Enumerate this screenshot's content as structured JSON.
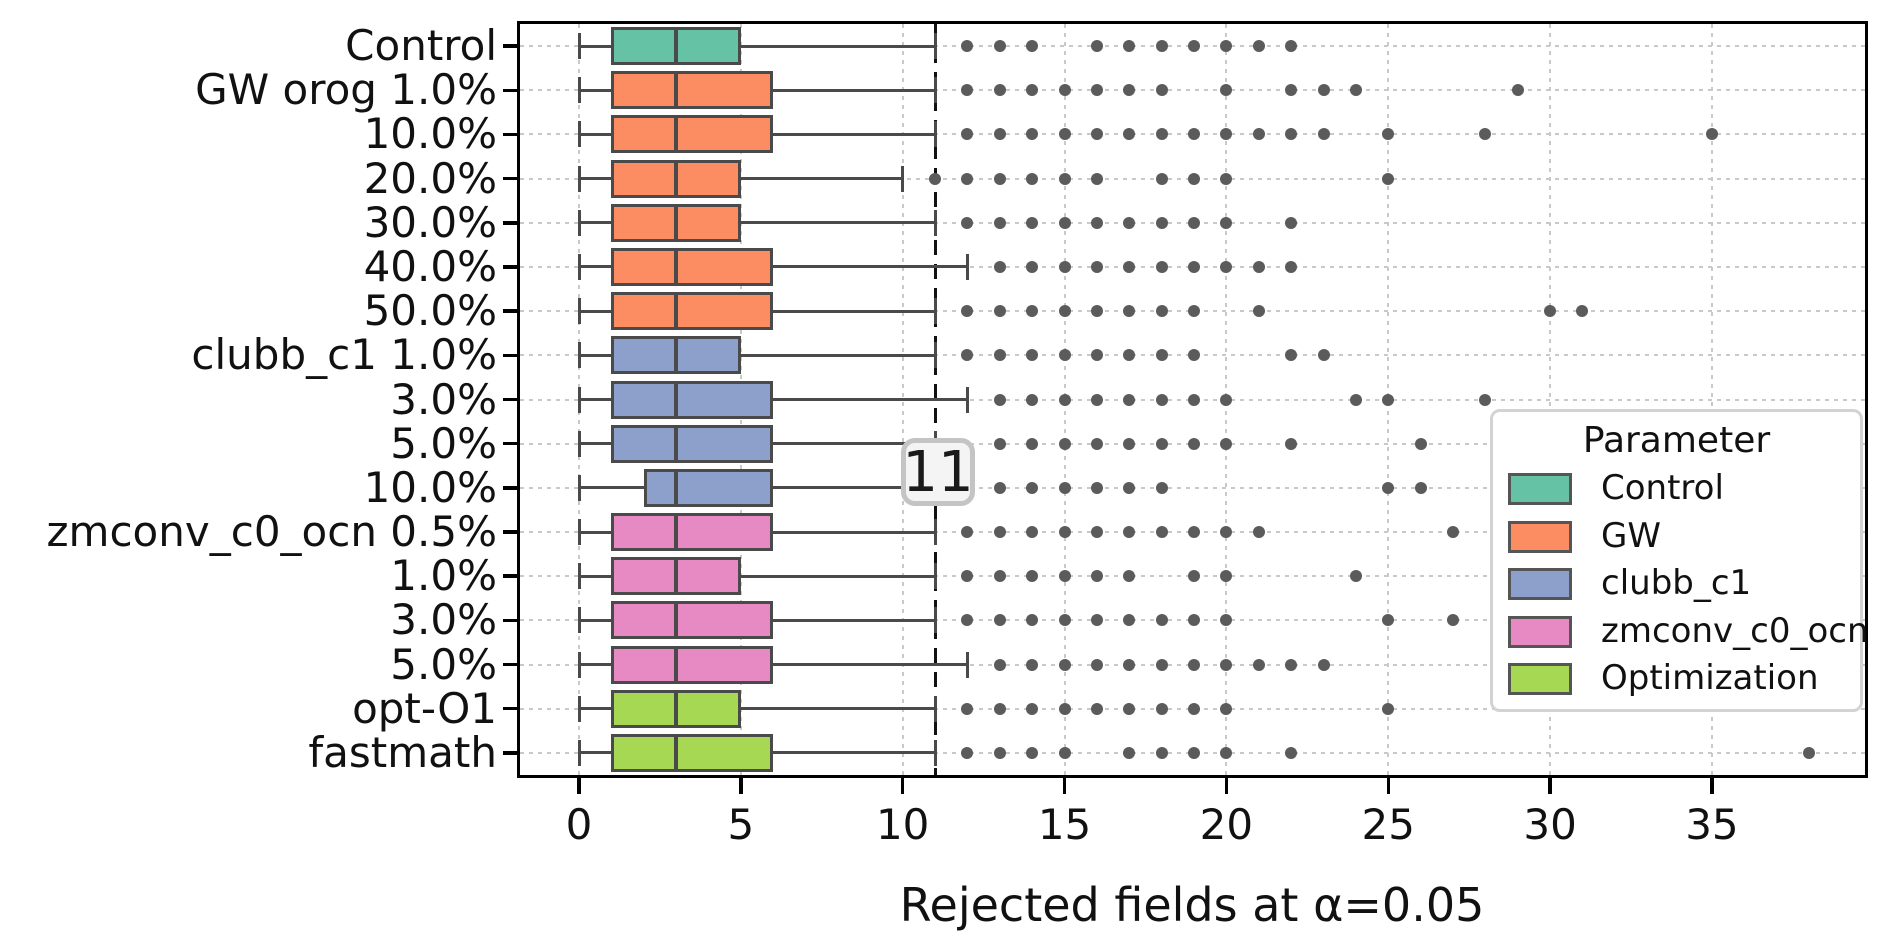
{
  "chart_data": {
    "type": "boxplot",
    "orientation": "horizontal",
    "xlabel": "Rejected fields at α=0.05",
    "x_ticks": [
      0,
      5,
      10,
      15,
      20,
      25,
      30,
      35
    ],
    "xlim": [
      -2,
      40
    ],
    "grid": "dotted on both axes",
    "reference_line": {
      "value": 11,
      "label": "11",
      "style": "black dashed vertical"
    },
    "legend": {
      "title": "Parameter",
      "position": "right",
      "entries": [
        {
          "label": "Control",
          "color": "#66c2a5"
        },
        {
          "label": "GW",
          "color": "#fc8d62"
        },
        {
          "label": "clubb_c1",
          "color": "#8da0cb"
        },
        {
          "label": "zmconv_c0_ocn",
          "color": "#e78ac3"
        },
        {
          "label": "Optimization",
          "color": "#a6d854"
        }
      ]
    },
    "style_colors": {
      "box_edge": "#4a4a4a",
      "flier": "#5b5b5b",
      "grid": "#c9c9c9",
      "reference": "#111111"
    },
    "rows": [
      {
        "label": "Control",
        "group": "Control",
        "whisker_low": 0,
        "q1": 1,
        "median": 3,
        "q3": 5,
        "whisker_high": 11,
        "fliers": [
          12,
          13,
          14,
          16,
          17,
          18,
          19,
          20,
          21,
          22
        ]
      },
      {
        "label": "GW orog 1.0%",
        "group": "GW",
        "whisker_low": 0,
        "q1": 1,
        "median": 3,
        "q3": 6,
        "whisker_high": 11,
        "fliers": [
          12,
          13,
          14,
          15,
          16,
          17,
          18,
          20,
          22,
          23,
          24,
          29
        ]
      },
      {
        "label": "10.0%",
        "group": "GW",
        "whisker_low": 0,
        "q1": 1,
        "median": 3,
        "q3": 6,
        "whisker_high": 11,
        "fliers": [
          12,
          13,
          14,
          15,
          16,
          17,
          18,
          19,
          20,
          21,
          22,
          23,
          25,
          28,
          35
        ]
      },
      {
        "label": "20.0%",
        "group": "GW",
        "whisker_low": 0,
        "q1": 1,
        "median": 3,
        "q3": 5,
        "whisker_high": 10,
        "fliers": [
          11,
          12,
          13,
          14,
          15,
          16,
          18,
          19,
          20,
          25
        ]
      },
      {
        "label": "30.0%",
        "group": "GW",
        "whisker_low": 0,
        "q1": 1,
        "median": 3,
        "q3": 5,
        "whisker_high": 11,
        "fliers": [
          12,
          13,
          14,
          15,
          16,
          17,
          18,
          19,
          20,
          22
        ]
      },
      {
        "label": "40.0%",
        "group": "GW",
        "whisker_low": 0,
        "q1": 1,
        "median": 3,
        "q3": 6,
        "whisker_high": 12,
        "fliers": [
          13,
          14,
          15,
          16,
          17,
          18,
          19,
          20,
          21,
          22
        ]
      },
      {
        "label": "50.0%",
        "group": "GW",
        "whisker_low": 0,
        "q1": 1,
        "median": 3,
        "q3": 6,
        "whisker_high": 11,
        "fliers": [
          12,
          13,
          14,
          15,
          16,
          17,
          18,
          19,
          21,
          30,
          31
        ]
      },
      {
        "label": "clubb_c1 1.0%",
        "group": "clubb_c1",
        "whisker_low": 0,
        "q1": 1,
        "median": 3,
        "q3": 5,
        "whisker_high": 11,
        "fliers": [
          12,
          13,
          14,
          15,
          16,
          17,
          18,
          19,
          22,
          23
        ]
      },
      {
        "label": "3.0%",
        "group": "clubb_c1",
        "whisker_low": 0,
        "q1": 1,
        "median": 3,
        "q3": 6,
        "whisker_high": 12,
        "fliers": [
          13,
          14,
          15,
          16,
          17,
          18,
          19,
          20,
          24,
          25,
          28
        ]
      },
      {
        "label": "5.0%",
        "group": "clubb_c1",
        "whisker_low": 0,
        "q1": 1,
        "median": 3,
        "q3": 6,
        "whisker_high": 11,
        "fliers": [
          13,
          14,
          15,
          16,
          17,
          18,
          19,
          20,
          22,
          26
        ]
      },
      {
        "label": "10.0%",
        "group": "clubb_c1",
        "whisker_low": 0,
        "q1": 2,
        "median": 3,
        "q3": 6,
        "whisker_high": 11,
        "fliers": [
          13,
          14,
          15,
          16,
          17,
          18,
          25,
          26
        ]
      },
      {
        "label": "zmconv_c0_ocn 0.5%",
        "group": "zmconv_c0_ocn",
        "whisker_low": 0,
        "q1": 1,
        "median": 3,
        "q3": 6,
        "whisker_high": 11,
        "fliers": [
          12,
          13,
          14,
          15,
          16,
          17,
          18,
          19,
          20,
          21,
          27
        ]
      },
      {
        "label": "1.0%",
        "group": "zmconv_c0_ocn",
        "whisker_low": 0,
        "q1": 1,
        "median": 3,
        "q3": 5,
        "whisker_high": 11,
        "fliers": [
          12,
          13,
          14,
          15,
          16,
          17,
          19,
          20,
          24
        ]
      },
      {
        "label": "3.0%",
        "group": "zmconv_c0_ocn",
        "whisker_low": 0,
        "q1": 1,
        "median": 3,
        "q3": 6,
        "whisker_high": 11,
        "fliers": [
          12,
          13,
          14,
          15,
          16,
          17,
          18,
          19,
          20,
          25,
          27
        ]
      },
      {
        "label": "5.0%",
        "group": "zmconv_c0_ocn",
        "whisker_low": 0,
        "q1": 1,
        "median": 3,
        "q3": 6,
        "whisker_high": 12,
        "fliers": [
          13,
          14,
          15,
          16,
          17,
          18,
          19,
          20,
          21,
          22,
          23
        ]
      },
      {
        "label": "opt-O1",
        "group": "Optimization",
        "whisker_low": 0,
        "q1": 1,
        "median": 3,
        "q3": 5,
        "whisker_high": 11,
        "fliers": [
          12,
          13,
          14,
          15,
          16,
          17,
          18,
          19,
          20,
          25
        ]
      },
      {
        "label": "fastmath",
        "group": "Optimization",
        "whisker_low": 0,
        "q1": 1,
        "median": 3,
        "q3": 6,
        "whisker_high": 11,
        "fliers": [
          12,
          13,
          14,
          15,
          17,
          18,
          19,
          20,
          22,
          38
        ]
      }
    ]
  }
}
